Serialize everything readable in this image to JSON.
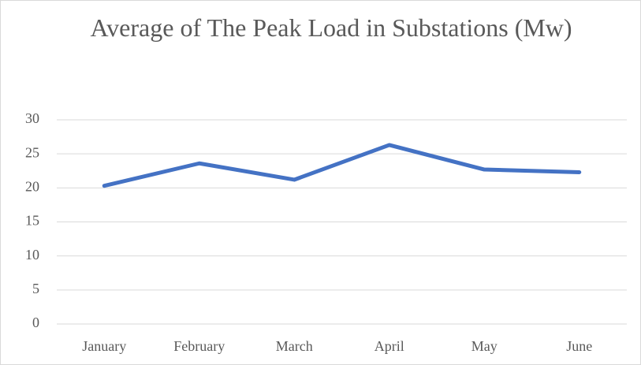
{
  "chart_data": {
    "type": "line",
    "title": "Average of The Peak Load in Substations (Mw)",
    "categories": [
      "January",
      "February",
      "March",
      "April",
      "May",
      "June"
    ],
    "values": [
      20.3,
      23.6,
      21.2,
      26.3,
      22.7,
      22.3
    ],
    "color": "#4472c4",
    "ylim": [
      0,
      30
    ],
    "yticks": [
      0,
      5,
      10,
      15,
      20,
      25,
      30
    ],
    "grid": true
  }
}
